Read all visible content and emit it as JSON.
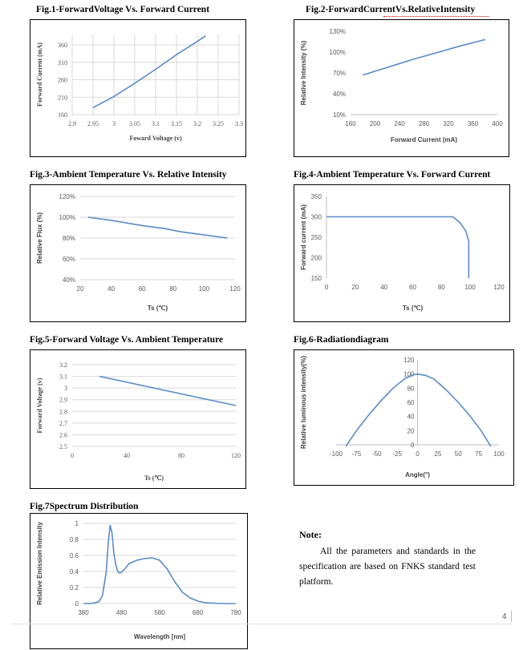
{
  "note": {
    "title": "Note:",
    "text": "All the parameters and standards in the specification are based on FNKS standard test platform."
  },
  "page_number": "4",
  "chart_data": [
    {
      "id": "fig1",
      "title": "Fig.1-ForwardVoltage Vs. Forward Current",
      "type": "line",
      "xlabel": "Foward Voltage (v)",
      "ylabel": "Forward Cuerent (mA)",
      "xlim": [
        2.9,
        3.3
      ],
      "ylim": [
        160,
        390
      ],
      "xticks": [
        "2.9",
        "2.95",
        "3",
        "3.05",
        "3.1",
        "3.15",
        "3.2",
        "3.25",
        "3.3"
      ],
      "yticks": [
        "160",
        "210",
        "260",
        "310",
        "360"
      ],
      "grid": true,
      "color": "#5b8bc6",
      "series": [
        {
          "x": [
            2.95,
            3.0,
            3.05,
            3.1,
            3.15,
            3.2,
            3.22
          ],
          "y": [
            180,
            212,
            250,
            290,
            332,
            370,
            386
          ]
        }
      ]
    },
    {
      "id": "fig2",
      "title": "Fig.2-ForwardCurrentVs.RelativeIntensity",
      "type": "line",
      "xlabel": "Forward Current (mA)",
      "ylabel": "Relative Intensity (%)",
      "xlim": [
        160,
        400
      ],
      "ylim": [
        10,
        130
      ],
      "xticks": [
        "160",
        "200",
        "240",
        "280",
        "320",
        "360",
        "400"
      ],
      "yticks": [
        "10%",
        "40%",
        "70%",
        "100%",
        "130%"
      ],
      "grid": false,
      "color": "#5b8bc6",
      "series": [
        {
          "x": [
            180,
            220,
            260,
            300,
            340,
            380
          ],
          "y": [
            67,
            78,
            89,
            99,
            109,
            118
          ]
        }
      ]
    },
    {
      "id": "fig3",
      "title": "Fig.3-Ambient Temperature Vs. Relative Intensity",
      "type": "line",
      "xlabel": "Ts (℃)",
      "ylabel": "Relative Flux (%)",
      "xlim": [
        20,
        120
      ],
      "ylim": [
        40,
        120
      ],
      "xticks": [
        "20",
        "40",
        "60",
        "80",
        "100",
        "120"
      ],
      "yticks": [
        "40%",
        "60%",
        "80%",
        "100%",
        "120%"
      ],
      "grid": true,
      "color": "#5b8bc6",
      "series": [
        {
          "x": [
            25,
            40,
            60,
            75,
            85,
            100,
            115
          ],
          "y": [
            100,
            97,
            92,
            89,
            86,
            83,
            80
          ]
        }
      ]
    },
    {
      "id": "fig4",
      "title": "Fig.4-Ambient Temperature Vs. Forward Current",
      "type": "line",
      "xlabel": "Ts (℃)",
      "ylabel": "Forward current (mA)",
      "xlim": [
        0,
        120
      ],
      "ylim": [
        150,
        350
      ],
      "xticks": [
        "0",
        "20",
        "40",
        "60",
        "80",
        "100",
        "120"
      ],
      "yticks": [
        "150",
        "200",
        "250",
        "300",
        "350"
      ],
      "grid": false,
      "color": "#5b8bc6",
      "series": [
        {
          "x": [
            0,
            88,
            93,
            97,
            99,
            99
          ],
          "y": [
            300,
            300,
            285,
            265,
            240,
            150
          ]
        }
      ]
    },
    {
      "id": "fig5",
      "title": "Fig.5-Forward Voltage Vs. Ambient Temperature",
      "type": "line",
      "xlabel": "Ts (℃)",
      "ylabel": "Forward Voltage (v)",
      "xlim": [
        0,
        120
      ],
      "ylim": [
        2.5,
        3.2
      ],
      "xticks": [
        "0",
        "40",
        "80",
        "120"
      ],
      "yticks": [
        "2.5",
        "2.6",
        "2.7",
        "2.8",
        "2.9",
        "3",
        "3.1",
        "3.2"
      ],
      "grid": true,
      "color": "#5b8bc6",
      "series": [
        {
          "x": [
            20,
            120
          ],
          "y": [
            3.1,
            2.85
          ]
        }
      ]
    },
    {
      "id": "fig6",
      "title": "Fig.6-Radiationdiagram",
      "type": "line",
      "xlabel": "Angle(°)",
      "ylabel": "Relative luminous intensity(%)",
      "xlim": [
        -100,
        100
      ],
      "ylim": [
        0,
        120
      ],
      "xticks": [
        "-100",
        "-75",
        "-50",
        "-25",
        "0",
        "25",
        "50",
        "75",
        "100"
      ],
      "yticks": [
        "0",
        "20",
        "40",
        "60",
        "80",
        "100",
        "120"
      ],
      "grid": false,
      "color": "#5b8bc6",
      "series": [
        {
          "x": [
            -88,
            -75,
            -60,
            -45,
            -30,
            -15,
            -5,
            0,
            10,
            20,
            35,
            50,
            65,
            78,
            90
          ],
          "y": [
            -2,
            20,
            42,
            62,
            80,
            94,
            99,
            100,
            98,
            93,
            78,
            60,
            40,
            20,
            -2
          ]
        }
      ]
    },
    {
      "id": "fig7",
      "title": "Fig.7Spectrum Distribution",
      "type": "line",
      "xlabel": "Wavelength [nm]",
      "ylabel": "Relative Emission Intensity",
      "xlim": [
        380,
        780
      ],
      "ylim": [
        0,
        1
      ],
      "xticks": [
        "380",
        "480",
        "580",
        "680",
        "780"
      ],
      "yticks": [
        "0",
        "0.2",
        "0.4",
        "0.6",
        "0.8",
        "1"
      ],
      "grid": true,
      "color": "#5b8bc6",
      "series": [
        {
          "x": [
            380,
            400,
            420,
            430,
            440,
            445,
            450,
            455,
            460,
            465,
            470,
            475,
            480,
            490,
            500,
            520,
            540,
            560,
            580,
            600,
            620,
            640,
            660,
            680,
            700,
            720,
            740,
            760,
            780
          ],
          "y": [
            0,
            0,
            0.02,
            0.1,
            0.4,
            0.75,
            0.98,
            0.88,
            0.62,
            0.48,
            0.4,
            0.38,
            0.39,
            0.44,
            0.5,
            0.54,
            0.56,
            0.57,
            0.54,
            0.43,
            0.27,
            0.14,
            0.07,
            0.03,
            0.01,
            0.005,
            0,
            0,
            0
          ]
        }
      ]
    }
  ]
}
